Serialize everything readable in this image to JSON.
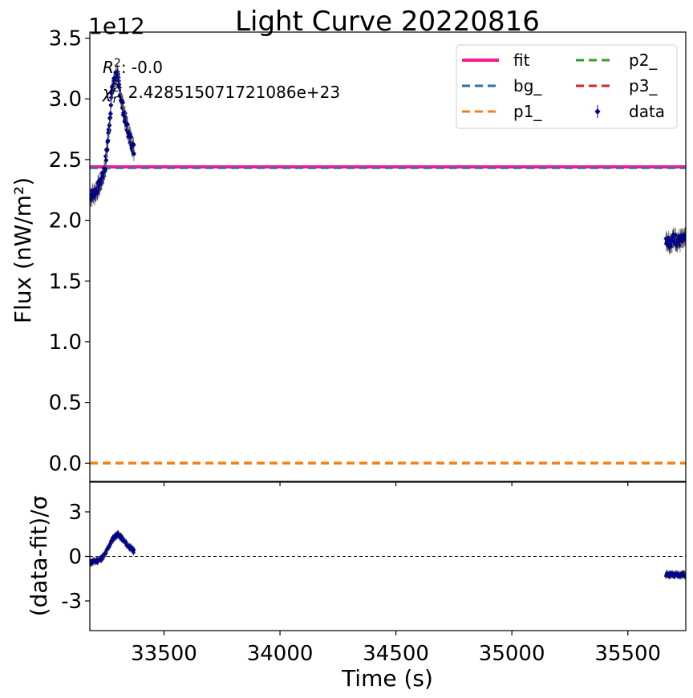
{
  "chart_data": [
    {
      "type": "scatter",
      "panel": "main",
      "title": "Light Curve 20220816",
      "xlabel": "",
      "ylabel": "Flux (nW/m²)",
      "y_multiplier": "1e12",
      "xlim": [
        33180,
        35750
      ],
      "ylim": [
        -0.15,
        3.55
      ],
      "yticks": [
        "0.0",
        "0.5",
        "1.0",
        "1.5",
        "2.0",
        "2.5",
        "3.0",
        "3.5"
      ],
      "grid": false,
      "legend": {
        "placement": "top-right",
        "columns": 2,
        "entries": [
          {
            "label": "fit",
            "color": "#ff1493",
            "style": "solid"
          },
          {
            "label": "bg_",
            "color": "#1f77b4",
            "style": "dashed"
          },
          {
            "label": "p1_",
            "color": "#ff7f0e",
            "style": "dashed"
          },
          {
            "label": "p2_",
            "color": "#2ca02c",
            "style": "dashed"
          },
          {
            "label": "p3_",
            "color": "#d62728",
            "style": "dashed"
          },
          {
            "label": "data",
            "color": "#00008b",
            "style": "errorbar"
          }
        ]
      },
      "annotations": {
        "r2_text": ": -0.0",
        "chi2_text": ": 2.428515071721086e+23"
      },
      "lines": [
        {
          "name": "fit",
          "y": 2.44,
          "color": "#ff1493"
        },
        {
          "name": "bg_",
          "y": 2.43,
          "color": "#1f77b4"
        },
        {
          "name": "p1_",
          "y": 0.0,
          "color": "#ff7f0e"
        },
        {
          "name": "p2_",
          "y": 0.0,
          "color": "#2ca02c"
        },
        {
          "name": "p3_",
          "y": 0.0,
          "color": "#d62728"
        }
      ],
      "series": [
        {
          "name": "data",
          "color": "#00008b",
          "segments": [
            {
              "x_start": 33180,
              "x_end": 33370,
              "count": 120,
              "profile": [
                [
                  33180,
                  2.2
                ],
                [
                  33200,
                  2.22
                ],
                [
                  33225,
                  2.3
                ],
                [
                  33245,
                  2.42
                ],
                [
                  33260,
                  2.7
                ],
                [
                  33275,
                  3.05
                ],
                [
                  33290,
                  3.2
                ],
                [
                  33300,
                  3.18
                ],
                [
                  33315,
                  3.0
                ],
                [
                  33330,
                  2.85
                ],
                [
                  33350,
                  2.7
                ],
                [
                  33370,
                  2.58
                ]
              ]
            },
            {
              "x_start": 35665,
              "x_end": 35750,
              "count": 60,
              "profile": [
                [
                  35665,
                  1.85
                ],
                [
                  35680,
                  1.82
                ],
                [
                  35700,
                  1.85
                ],
                [
                  35720,
                  1.83
                ],
                [
                  35750,
                  1.84
                ]
              ]
            }
          ],
          "yerr": 0.06
        }
      ]
    },
    {
      "type": "scatter",
      "panel": "residual",
      "title": "",
      "xlabel": "Time (s)",
      "ylabel": "(data-fit)/σ",
      "xlim": [
        33180,
        35750
      ],
      "ylim": [
        -5,
        5
      ],
      "xticks": [
        33500,
        34000,
        34500,
        35000,
        35500
      ],
      "xtick_labels": [
        "33500",
        "34000",
        "34500",
        "35000",
        "35500"
      ],
      "yticks": [
        3,
        0,
        -3
      ],
      "ytick_labels": [
        "3",
        "0",
        "-3"
      ],
      "reference_line": {
        "y": 0,
        "color": "#000000",
        "style": "dashed"
      },
      "series": [
        {
          "name": "residual",
          "color": "#00008b",
          "segments": [
            {
              "x_start": 33180,
              "x_end": 33370,
              "count": 120,
              "profile": [
                [
                  33180,
                  -0.4
                ],
                [
                  33200,
                  -0.35
                ],
                [
                  33225,
                  -0.2
                ],
                [
                  33245,
                  0.1
                ],
                [
                  33260,
                  0.6
                ],
                [
                  33280,
                  1.2
                ],
                [
                  33300,
                  1.5
                ],
                [
                  33320,
                  1.2
                ],
                [
                  33340,
                  0.8
                ],
                [
                  33370,
                  0.35
                ]
              ]
            },
            {
              "x_start": 35665,
              "x_end": 35750,
              "count": 60,
              "profile": [
                [
                  35665,
                  -1.2
                ],
                [
                  35700,
                  -1.25
                ],
                [
                  35750,
                  -1.22
                ]
              ]
            }
          ]
        }
      ]
    }
  ]
}
